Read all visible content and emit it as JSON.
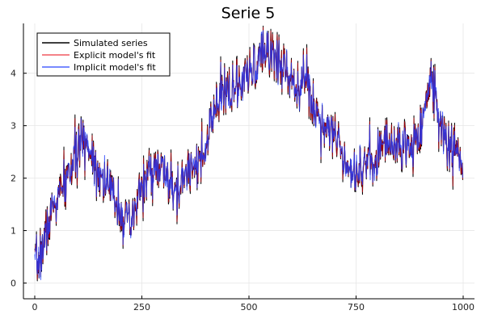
{
  "chart_data": {
    "type": "line",
    "title": "Serie 5",
    "xlabel": "",
    "ylabel": "",
    "xlim": [
      0,
      1000
    ],
    "ylim": [
      -0.3,
      4.95
    ],
    "xticks": [
      0,
      250,
      500,
      750,
      1000
    ],
    "yticks": [
      0,
      1,
      2,
      3,
      4
    ],
    "grid": true,
    "legend_position": "top-left",
    "n_points": 1000,
    "trend_anchors": [
      [
        0,
        0.3
      ],
      [
        15,
        0.55
      ],
      [
        30,
        1.1
      ],
      [
        45,
        1.5
      ],
      [
        60,
        1.7
      ],
      [
        80,
        2.1
      ],
      [
        100,
        2.5
      ],
      [
        115,
        2.75
      ],
      [
        130,
        2.55
      ],
      [
        150,
        2.1
      ],
      [
        170,
        1.85
      ],
      [
        190,
        1.6
      ],
      [
        210,
        1.2
      ],
      [
        225,
        1.05
      ],
      [
        245,
        1.75
      ],
      [
        265,
        2.05
      ],
      [
        285,
        2.2
      ],
      [
        305,
        2.1
      ],
      [
        330,
        1.6
      ],
      [
        345,
        2.0
      ],
      [
        370,
        2.35
      ],
      [
        395,
        2.3
      ],
      [
        410,
        3.0
      ],
      [
        430,
        3.5
      ],
      [
        450,
        3.7
      ],
      [
        470,
        3.65
      ],
      [
        490,
        3.85
      ],
      [
        510,
        4.05
      ],
      [
        530,
        4.35
      ],
      [
        550,
        4.45
      ],
      [
        570,
        4.2
      ],
      [
        590,
        4.05
      ],
      [
        610,
        3.8
      ],
      [
        630,
        3.95
      ],
      [
        650,
        3.4
      ],
      [
        670,
        3.05
      ],
      [
        690,
        3.0
      ],
      [
        710,
        2.65
      ],
      [
        730,
        2.3
      ],
      [
        750,
        2.1
      ],
      [
        770,
        2.3
      ],
      [
        790,
        2.3
      ],
      [
        810,
        2.65
      ],
      [
        830,
        2.65
      ],
      [
        850,
        2.65
      ],
      [
        870,
        2.55
      ],
      [
        890,
        2.75
      ],
      [
        905,
        3.1
      ],
      [
        915,
        3.55
      ],
      [
        925,
        3.9
      ],
      [
        935,
        3.6
      ],
      [
        945,
        3.1
      ],
      [
        960,
        2.7
      ],
      [
        975,
        2.55
      ],
      [
        990,
        2.45
      ],
      [
        1000,
        2.1
      ]
    ],
    "noise_amplitude": 0.22,
    "series": [
      {
        "name": "Simulated series",
        "color": "#000000",
        "opacity": 1.0,
        "noise_seed": 11,
        "noise_scale": 1.15
      },
      {
        "name": "Explicit model's fit",
        "color": "#e8000b",
        "opacity": 0.65,
        "noise_seed": 11,
        "noise_scale": 1.05
      },
      {
        "name": "Implicit model's fit",
        "color": "#1f3cff",
        "opacity": 0.8,
        "noise_seed": 23,
        "noise_scale": 0.95
      }
    ]
  },
  "colors": {
    "axis": "#000000",
    "grid": "#e6e6e6",
    "legend_border": "#000000"
  }
}
